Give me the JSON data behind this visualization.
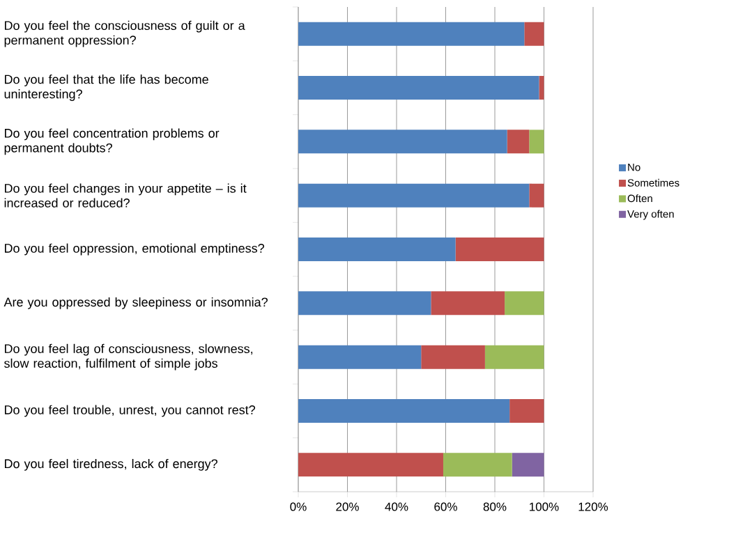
{
  "chart_data": {
    "type": "bar",
    "orientation": "horizontal",
    "stacked": true,
    "categories": [
      "Do you feel the consciousness of guilt or a permanent oppression?",
      "Do you feel that the life has become uninteresting?",
      "Do you feel concentration problems or permanent doubts?",
      "Do you feel changes in your appetite – is it increased or reduced?",
      "Do you feel oppression, emotional emptiness?",
      "Are you oppressed by sleepiness or insomnia?",
      "Do you feel lag of consciousness, slowness, slow reaction, fulfilment of simple jobs",
      "Do you feel trouble, unrest, you cannot rest?",
      "Do you feel tiredness, lack of energy?"
    ],
    "series": [
      {
        "name": "No",
        "color": "#4f81bd",
        "values": [
          92,
          98,
          85,
          94,
          64,
          54,
          50,
          86,
          null
        ]
      },
      {
        "name": "Sometimes",
        "color": "#c0504d",
        "values": [
          8,
          2,
          9,
          6,
          36,
          30,
          26,
          14,
          59
        ]
      },
      {
        "name": "Often",
        "color": "#9bbb59",
        "values": [
          null,
          null,
          6,
          null,
          null,
          16,
          24,
          null,
          28
        ]
      },
      {
        "name": "Very often",
        "color": "#8064a2",
        "values": [
          null,
          null,
          null,
          null,
          null,
          null,
          null,
          null,
          13
        ]
      }
    ],
    "xlim": [
      0,
      120
    ],
    "xticks": [
      {
        "value": 0,
        "label": "0%"
      },
      {
        "value": 20,
        "label": "20%"
      },
      {
        "value": 40,
        "label": "40%"
      },
      {
        "value": 60,
        "label": "60%"
      },
      {
        "value": 80,
        "label": "80%"
      },
      {
        "value": 100,
        "label": "100%"
      },
      {
        "value": 120,
        "label": "120%"
      }
    ],
    "grid": "x",
    "legend": "right"
  }
}
